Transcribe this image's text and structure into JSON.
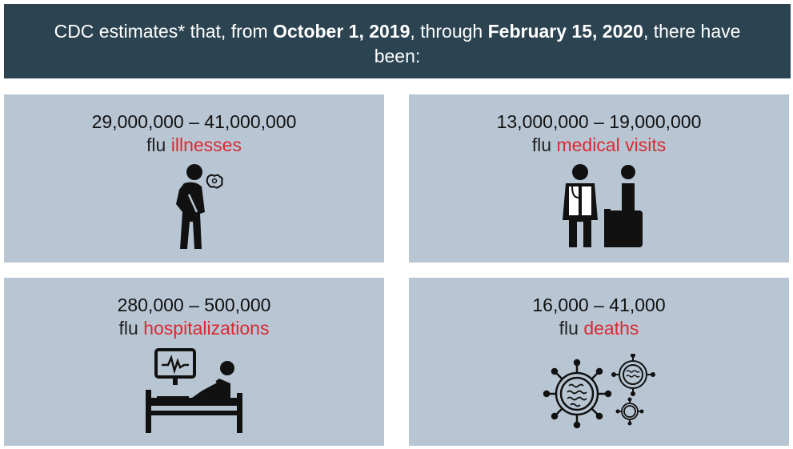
{
  "header": {
    "part1": "CDC estimates* that, from ",
    "date_start": "October 1, 2019",
    "part2": ", through ",
    "date_end": "February 15, 2020",
    "part3": ", there have been:"
  },
  "cards": [
    {
      "range": "29,000,000 – 41,000,000",
      "prefix": "flu ",
      "highlight": "illnesses",
      "icon": "sick-person-icon"
    },
    {
      "range": "13,000,000 – 19,000,000",
      "prefix": "flu ",
      "highlight": "medical visits",
      "icon": "doctor-patient-icon"
    },
    {
      "range": "280,000 – 500,000",
      "prefix": "flu ",
      "highlight": "hospitalizations",
      "icon": "hospital-bed-icon"
    },
    {
      "range": "16,000 – 41,000",
      "prefix": "flu ",
      "highlight": "deaths",
      "icon": "virus-icon"
    }
  ],
  "colors": {
    "header_bg": "#2c4451",
    "card_bg": "#b8c6d3",
    "highlight": "#d92a34"
  }
}
